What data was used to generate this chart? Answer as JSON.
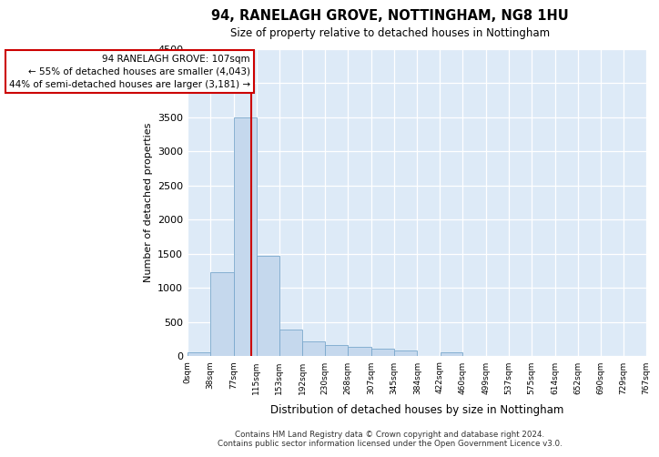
{
  "title": "94, RANELAGH GROVE, NOTTINGHAM, NG8 1HU",
  "subtitle": "Size of property relative to detached houses in Nottingham",
  "xlabel": "Distribution of detached houses by size in Nottingham",
  "ylabel": "Number of detached properties",
  "bar_color": "#c5d8ed",
  "bar_edge_color": "#7aa8cc",
  "background_color": "#ddeaf7",
  "grid_color": "#ffffff",
  "property_line_x": 107,
  "property_line_color": "#cc0000",
  "annotation_line1": "94 RANELAGH GROVE: 107sqm",
  "annotation_line2": "← 55% of detached houses are smaller (4,043)",
  "annotation_line3": "44% of semi-detached houses are larger (3,181) →",
  "footer_line1": "Contains HM Land Registry data © Crown copyright and database right 2024.",
  "footer_line2": "Contains public sector information licensed under the Open Government Licence v3.0.",
  "bin_edges": [
    0,
    38,
    77,
    115,
    153,
    192,
    230,
    268,
    307,
    345,
    384,
    422,
    460,
    499,
    537,
    575,
    614,
    652,
    690,
    729,
    767
  ],
  "bin_counts": [
    50,
    1230,
    3500,
    1470,
    385,
    210,
    155,
    130,
    105,
    85,
    0,
    48,
    0,
    0,
    0,
    0,
    0,
    0,
    0,
    0
  ],
  "ylim": [
    0,
    4500
  ],
  "yticks": [
    0,
    500,
    1000,
    1500,
    2000,
    2500,
    3000,
    3500,
    4000,
    4500
  ]
}
